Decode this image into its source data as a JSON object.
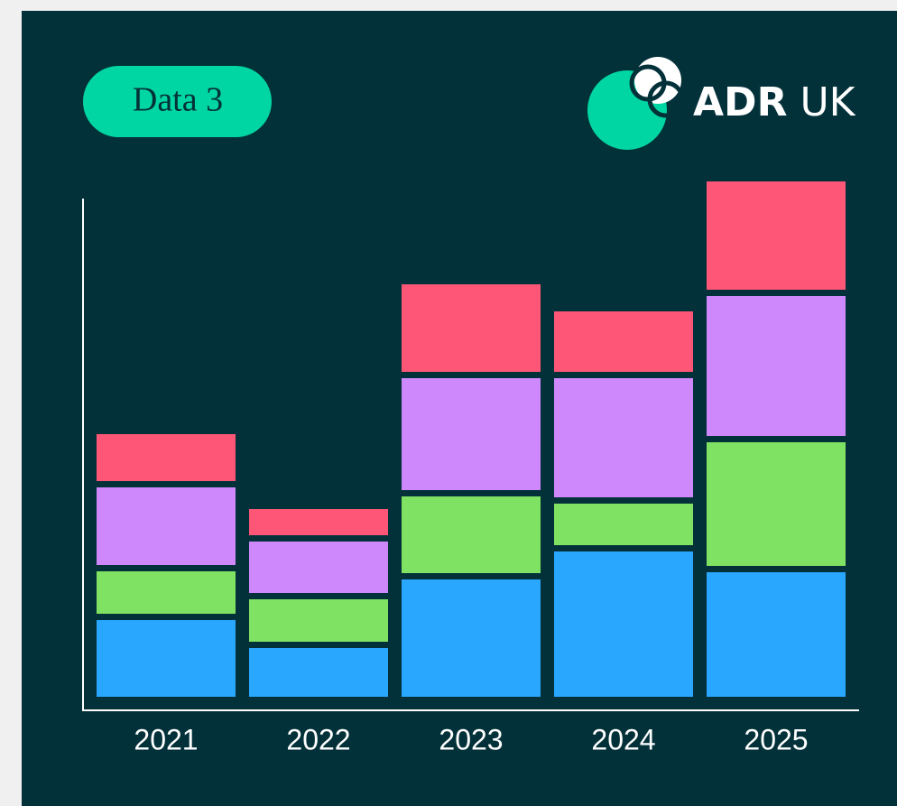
{
  "badge": "Data 3",
  "logo": {
    "bold": "ADR",
    "regular": "UK"
  },
  "chart_data": {
    "type": "stacked_bar",
    "categories": [
      "2021",
      "2022",
      "2023",
      "2024",
      "2025"
    ],
    "series": [
      {
        "color": "#29a6fd",
        "values": [
          85,
          54,
          130,
          161,
          138
        ]
      },
      {
        "color": "#80e262",
        "values": [
          54,
          54,
          92,
          53,
          144
        ]
      },
      {
        "color": "#cf88fc",
        "values": [
          93,
          64,
          131,
          139,
          162
        ]
      },
      {
        "color": "#fd5676",
        "values": [
          59,
          36,
          104,
          74,
          127
        ]
      }
    ],
    "ylim": [
      0,
      600
    ]
  }
}
